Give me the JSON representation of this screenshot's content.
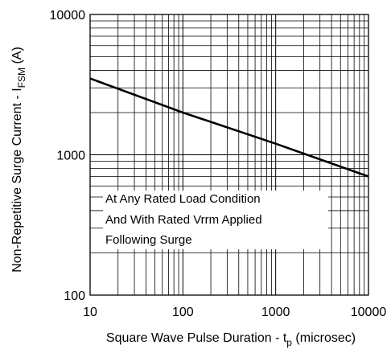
{
  "chart_data": {
    "type": "line",
    "title": "",
    "xlabel_parts": {
      "main": "Square Wave Pulse Duration - t",
      "sub": "p",
      "suffix": " (microsec)"
    },
    "ylabel_parts": {
      "main": "Non-Repetitive Surge Current - I",
      "sub": "FSM",
      "suffix": " (A)"
    },
    "x_scale": "log",
    "y_scale": "log",
    "xlim": [
      10,
      10000
    ],
    "ylim": [
      100,
      10000
    ],
    "x_ticks": [
      10,
      100,
      1000,
      10000
    ],
    "y_ticks": [
      100,
      1000,
      10000
    ],
    "x_tick_labels": [
      "10",
      "100",
      "1000",
      "10000"
    ],
    "y_tick_labels": [
      "100",
      "1000",
      "10000"
    ],
    "grid": true,
    "series": [
      {
        "x": [
          10,
          100,
          1000,
          10000
        ],
        "values": [
          3500,
          2000,
          1200,
          700
        ]
      }
    ],
    "annotation": {
      "lines": [
        "At Any Rated Load Condition",
        "And With Rated Vrrm Applied",
        "Following Surge"
      ],
      "placement": "lower-left"
    },
    "colors": {
      "line": "#000000",
      "grid": "#000000",
      "background": "#ffffff"
    }
  }
}
